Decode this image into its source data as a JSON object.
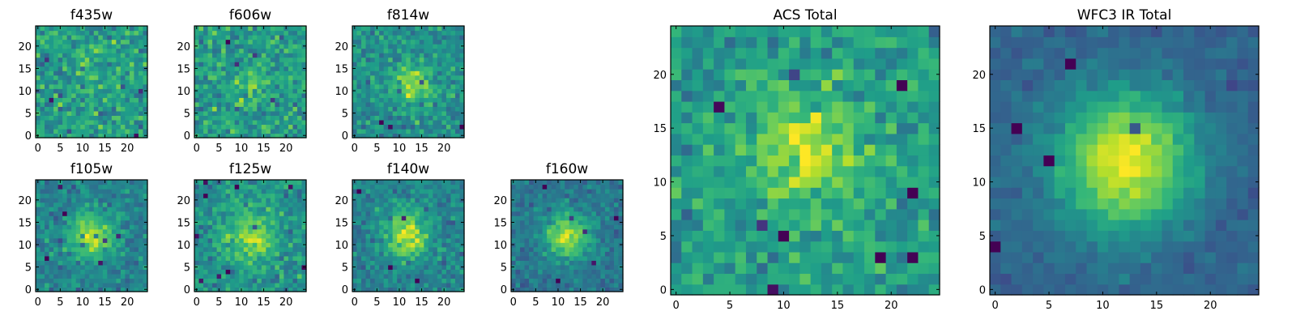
{
  "chart_data": [
    {
      "type": "heatmap",
      "title": "f435w",
      "shape": [
        25,
        25
      ],
      "xlim": [
        -0.5,
        24.5
      ],
      "ylim": [
        -0.5,
        24.5
      ],
      "xticks": [
        0,
        5,
        10,
        15,
        20
      ],
      "yticks": [
        0,
        5,
        10,
        15,
        20
      ],
      "colormap": "viridis"
    },
    {
      "type": "heatmap",
      "title": "f606w",
      "shape": [
        25,
        25
      ],
      "xlim": [
        -0.5,
        24.5
      ],
      "ylim": [
        -0.5,
        24.5
      ],
      "xticks": [
        0,
        5,
        10,
        15,
        20
      ],
      "yticks": [
        0,
        5,
        10,
        15,
        20
      ],
      "colormap": "viridis"
    },
    {
      "type": "heatmap",
      "title": "f814w",
      "shape": [
        25,
        25
      ],
      "xlim": [
        -0.5,
        24.5
      ],
      "ylim": [
        -0.5,
        24.5
      ],
      "xticks": [
        0,
        5,
        10,
        15,
        20
      ],
      "yticks": [
        0,
        5,
        10,
        15,
        20
      ],
      "colormap": "viridis"
    },
    {
      "type": "heatmap",
      "title": "f105w",
      "shape": [
        25,
        25
      ],
      "xlim": [
        -0.5,
        24.5
      ],
      "ylim": [
        -0.5,
        24.5
      ],
      "xticks": [
        0,
        5,
        10,
        15,
        20
      ],
      "yticks": [
        0,
        5,
        10,
        15,
        20
      ],
      "colormap": "viridis"
    },
    {
      "type": "heatmap",
      "title": "f125w",
      "shape": [
        25,
        25
      ],
      "xlim": [
        -0.5,
        24.5
      ],
      "ylim": [
        -0.5,
        24.5
      ],
      "xticks": [
        0,
        5,
        10,
        15,
        20
      ],
      "yticks": [
        0,
        5,
        10,
        15,
        20
      ],
      "colormap": "viridis"
    },
    {
      "type": "heatmap",
      "title": "f140w",
      "shape": [
        25,
        25
      ],
      "xlim": [
        -0.5,
        24.5
      ],
      "ylim": [
        -0.5,
        24.5
      ],
      "xticks": [
        0,
        5,
        10,
        15,
        20
      ],
      "yticks": [
        0,
        5,
        10,
        15,
        20
      ],
      "colormap": "viridis"
    },
    {
      "type": "heatmap",
      "title": "f160w",
      "shape": [
        25,
        25
      ],
      "xlim": [
        -0.5,
        24.5
      ],
      "ylim": [
        -0.5,
        24.5
      ],
      "xticks": [
        0,
        5,
        10,
        15,
        20
      ],
      "yticks": [
        0,
        5,
        10,
        15,
        20
      ],
      "colormap": "viridis"
    },
    {
      "type": "heatmap",
      "title": "ACS Total",
      "shape": [
        25,
        25
      ],
      "xlim": [
        -0.5,
        24.5
      ],
      "ylim": [
        -0.5,
        24.5
      ],
      "xticks": [
        0,
        5,
        10,
        15,
        20
      ],
      "yticks": [
        0,
        5,
        10,
        15,
        20
      ],
      "colormap": "viridis"
    },
    {
      "type": "heatmap",
      "title": "WFC3 IR Total",
      "shape": [
        25,
        25
      ],
      "xlim": [
        -0.5,
        24.5
      ],
      "ylim": [
        -0.5,
        24.5
      ],
      "xticks": [
        0,
        5,
        10,
        15,
        20
      ],
      "yticks": [
        0,
        5,
        10,
        15,
        20
      ],
      "colormap": "viridis"
    }
  ]
}
